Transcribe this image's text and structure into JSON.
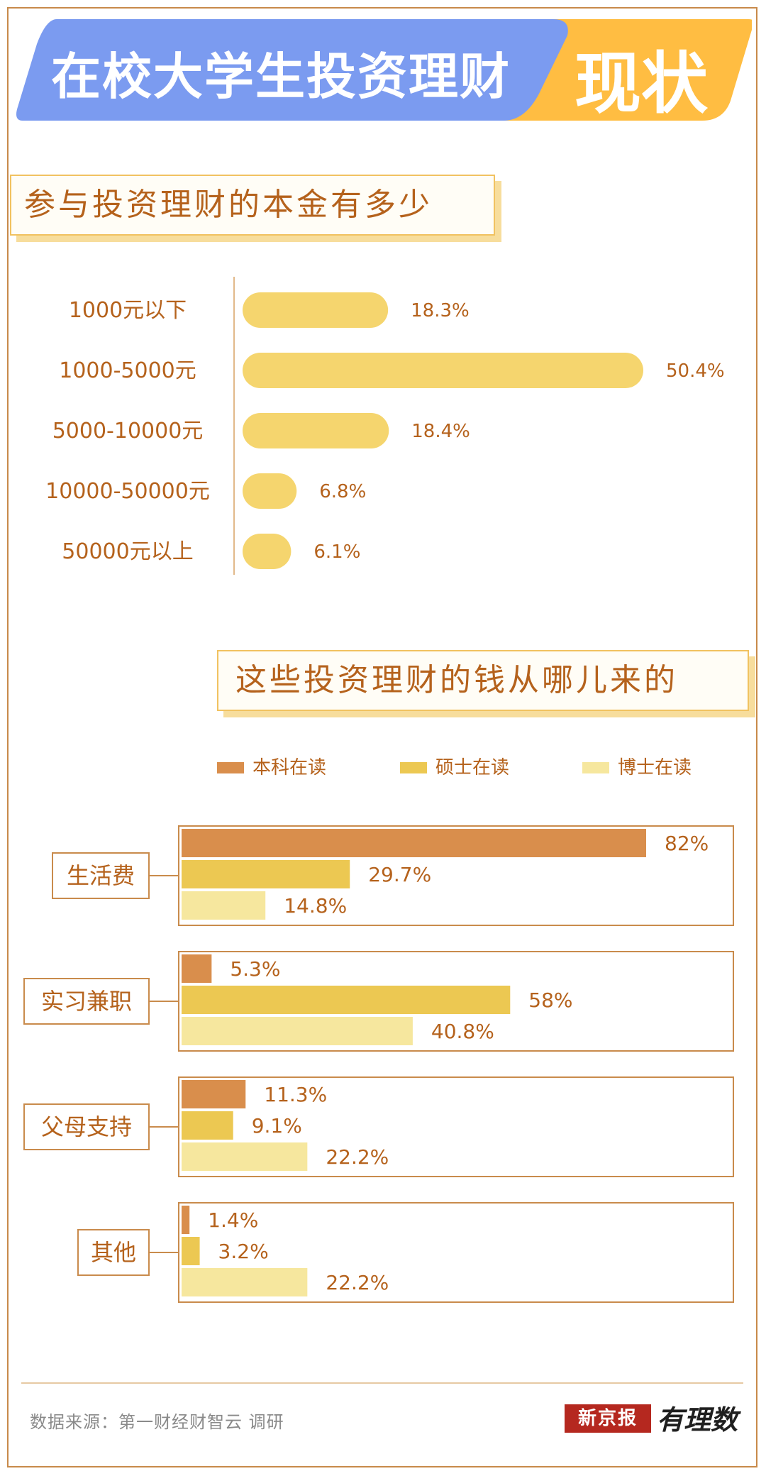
{
  "title": {
    "main": "在校大学生投资理财",
    "accent": "现状"
  },
  "colors": {
    "banner_blue": "#7b9bf0",
    "banner_orange": "#ffbd42",
    "bar_yellow": "#f5d56e",
    "undergrad": "#d98e4c",
    "master": "#ecc852",
    "phd": "#f6e79e",
    "text_brown": "#b5621c",
    "box_border": "#c98b4c"
  },
  "chart_data": [
    {
      "type": "bar",
      "orientation": "horizontal",
      "title": "参与投资理财的本金有多少",
      "categories": [
        "1000元以下",
        "1000-5000元",
        "5000-10000元",
        "10000-50000元",
        "50000元以上"
      ],
      "values": [
        18.3,
        50.4,
        18.4,
        6.8,
        6.1
      ],
      "labels": [
        "18.3%",
        "50.4%",
        "18.4%",
        "6.8%",
        "6.1%"
      ],
      "unit": "%"
    },
    {
      "type": "bar",
      "orientation": "horizontal",
      "title": "这些投资理财的钱从哪儿来的",
      "legend": [
        "本科在读",
        "硕士在读",
        "博士在读"
      ],
      "legend_position": "top",
      "categories": [
        "生活费",
        "实习兼职",
        "父母支持",
        "其他"
      ],
      "series": [
        {
          "name": "本科在读",
          "values": [
            82,
            5.3,
            11.3,
            1.4
          ],
          "labels": [
            "82%",
            "5.3%",
            "11.3%",
            "1.4%"
          ]
        },
        {
          "name": "硕士在读",
          "values": [
            29.7,
            58,
            9.1,
            3.2
          ],
          "labels": [
            "29.7%",
            "58%",
            "9.1%",
            "3.2%"
          ]
        },
        {
          "name": "博士在读",
          "values": [
            14.8,
            40.8,
            22.2,
            22.2
          ],
          "labels": [
            "14.8%",
            "40.8%",
            "22.2%",
            "22.2%"
          ]
        }
      ],
      "unit": "%"
    }
  ],
  "footer": {
    "source": "数据来源：第一财经财智云 调研",
    "logo": "新京报",
    "brand": "有理数"
  }
}
